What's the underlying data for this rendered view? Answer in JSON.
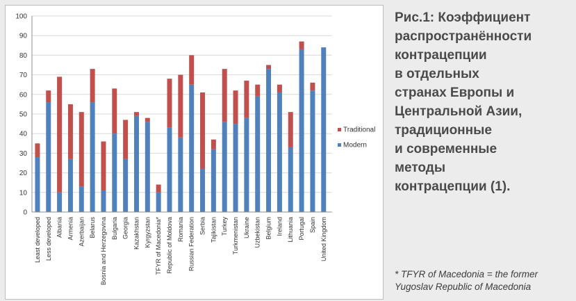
{
  "caption_lines": [
    "Рис.1: Коэффициент",
    "распространённости",
    "контрацепции",
    "в отдельных",
    "странах Европы и",
    "Центральной Азии,",
    "традиционные",
    "и современные",
    "методы",
    "контрацепции (1)."
  ],
  "footnote_lines": [
    "* TFYR of Macedonia = the former",
    "Yugoslav Republic of Macedonia"
  ],
  "colors": {
    "modern": "#4f81bd",
    "traditional": "#c0504d"
  },
  "chart_data": {
    "type": "bar",
    "stacked": true,
    "title": "",
    "xlabel": "",
    "ylabel": "",
    "ylim": [
      0,
      100
    ],
    "yticks": [
      "0",
      "10",
      "20",
      "30",
      "40",
      "50",
      "60",
      "70",
      "80",
      "90",
      "100"
    ],
    "legend_position": "right",
    "categories": [
      "Least developed",
      "Less developed",
      "Albania",
      "Armenia",
      "Azerbaijan",
      "Belarus",
      "Bosnia and Herzegovina",
      "Bulgaria",
      "Georgia",
      "Kazakhstan",
      "Kyrgyzstan",
      "TFYR of Macedonia*",
      "Republic of Moldova",
      "Romania",
      "Russian Federation",
      "Serbia",
      "Tajikistan",
      "Turkey",
      "Turkmenistan",
      "Ukraine",
      "Uzbekistan",
      "Belgium",
      "Ireland",
      "Lithuania",
      "Portugal",
      "Spain",
      "United Kingdom"
    ],
    "series": [
      {
        "name": "Modern",
        "values": [
          28,
          56,
          10,
          27,
          13,
          56,
          11,
          40,
          27,
          49,
          46,
          10,
          43,
          38,
          65,
          22,
          32,
          46,
          45,
          48,
          59,
          73,
          61,
          33,
          83,
          62,
          84
        ]
      },
      {
        "name": "Traditional",
        "values": [
          7,
          6,
          59,
          28,
          38,
          17,
          25,
          23,
          20,
          2,
          2,
          4,
          25,
          32,
          15,
          39,
          5,
          27,
          17,
          19,
          6,
          2,
          4,
          18,
          4,
          4,
          0
        ]
      }
    ],
    "legend_order": [
      "Traditional",
      "Modern"
    ]
  }
}
